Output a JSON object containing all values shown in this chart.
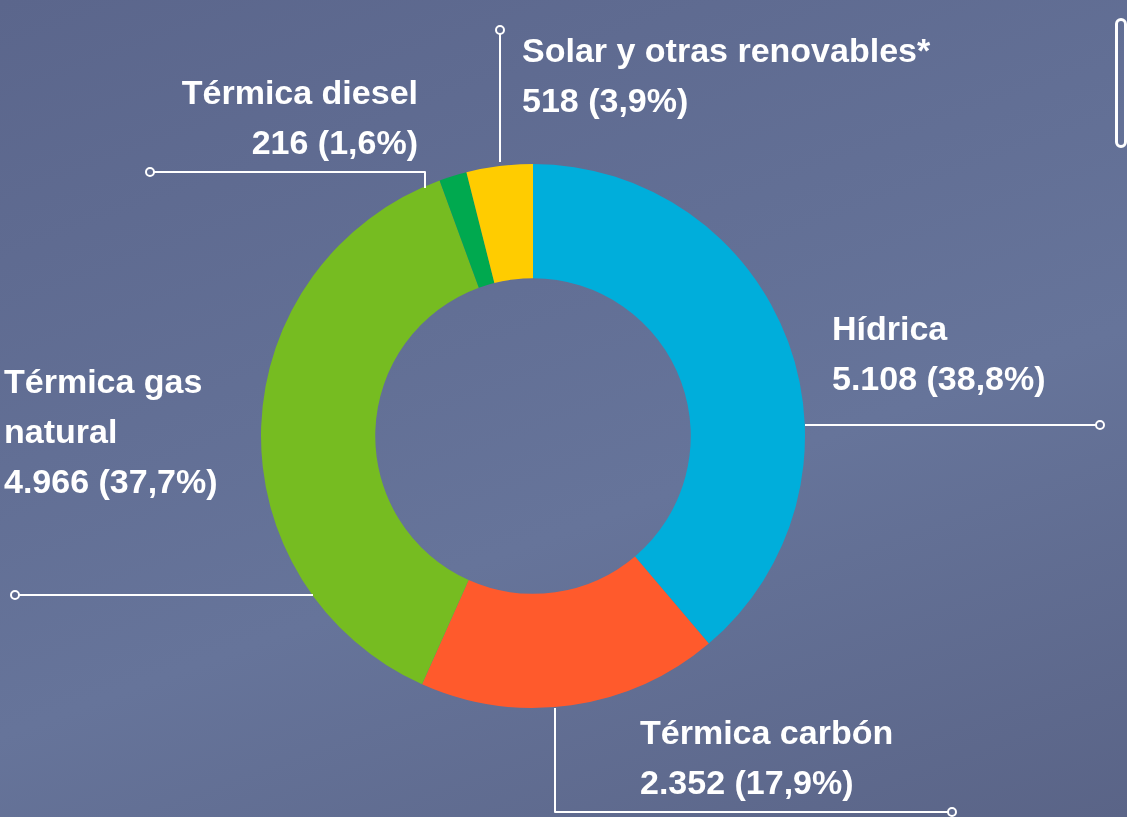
{
  "chart_data": {
    "type": "donut",
    "categories": [
      "Hídrica",
      "Térmica carbón",
      "Térmica gas natural",
      "Térmica diesel",
      "Solar y otras renovables*"
    ],
    "values": [
      5108,
      2352,
      4966,
      216,
      518
    ],
    "value_labels": [
      "5.108 (38,8%)",
      "2.352 (17,9%)",
      "4.966 (37,7%)",
      "216 (1,6%)",
      "518 (3,9%)"
    ],
    "colors": [
      "#00aedb",
      "#ff5a2c",
      "#76bc21",
      "#00a94f",
      "#ffcc00"
    ],
    "legend": false
  }
}
